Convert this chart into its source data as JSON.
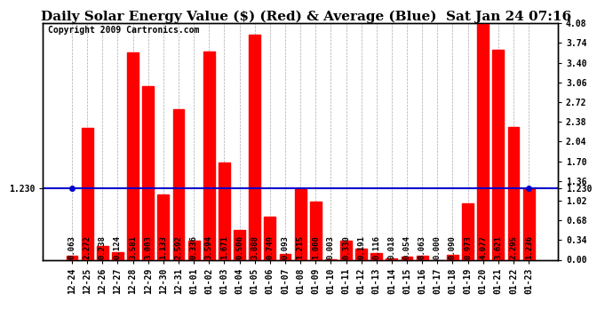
{
  "title": "Daily Solar Energy Value ($) (Red) & Average (Blue)  Sat Jan 24 07:16",
  "copyright": "Copyright 2009 Cartronics.com",
  "average": 1.23,
  "categories": [
    "12-24",
    "12-25",
    "12-26",
    "12-27",
    "12-28",
    "12-29",
    "12-30",
    "12-31",
    "01-01",
    "01-02",
    "01-03",
    "01-04",
    "01-05",
    "01-06",
    "01-07",
    "01-08",
    "01-09",
    "01-10",
    "01-11",
    "01-12",
    "01-13",
    "01-14",
    "01-15",
    "01-16",
    "01-17",
    "01-18",
    "01-19",
    "01-20",
    "01-21",
    "01-22",
    "01-23"
  ],
  "values": [
    0.063,
    2.272,
    0.238,
    0.124,
    3.581,
    3.003,
    1.133,
    2.592,
    0.336,
    3.594,
    1.671,
    0.506,
    3.888,
    0.749,
    0.093,
    1.215,
    1.0,
    0.003,
    0.33,
    0.191,
    0.116,
    0.018,
    0.054,
    0.063,
    0.0,
    0.09,
    0.973,
    4.077,
    3.621,
    2.295,
    1.236
  ],
  "bar_color": "#ff0000",
  "avg_line_color": "#0000cc",
  "background_color": "#ffffff",
  "plot_bg_color": "#ffffff",
  "grid_color": "#aaaaaa",
  "ylim": [
    0,
    4.08
  ],
  "yticks_right": [
    0.0,
    0.34,
    0.68,
    1.02,
    1.36,
    1.7,
    2.04,
    2.38,
    2.72,
    3.06,
    3.4,
    3.74,
    4.08
  ],
  "title_fontsize": 11,
  "label_fontsize": 6.5,
  "tick_fontsize": 7,
  "copyright_fontsize": 7
}
